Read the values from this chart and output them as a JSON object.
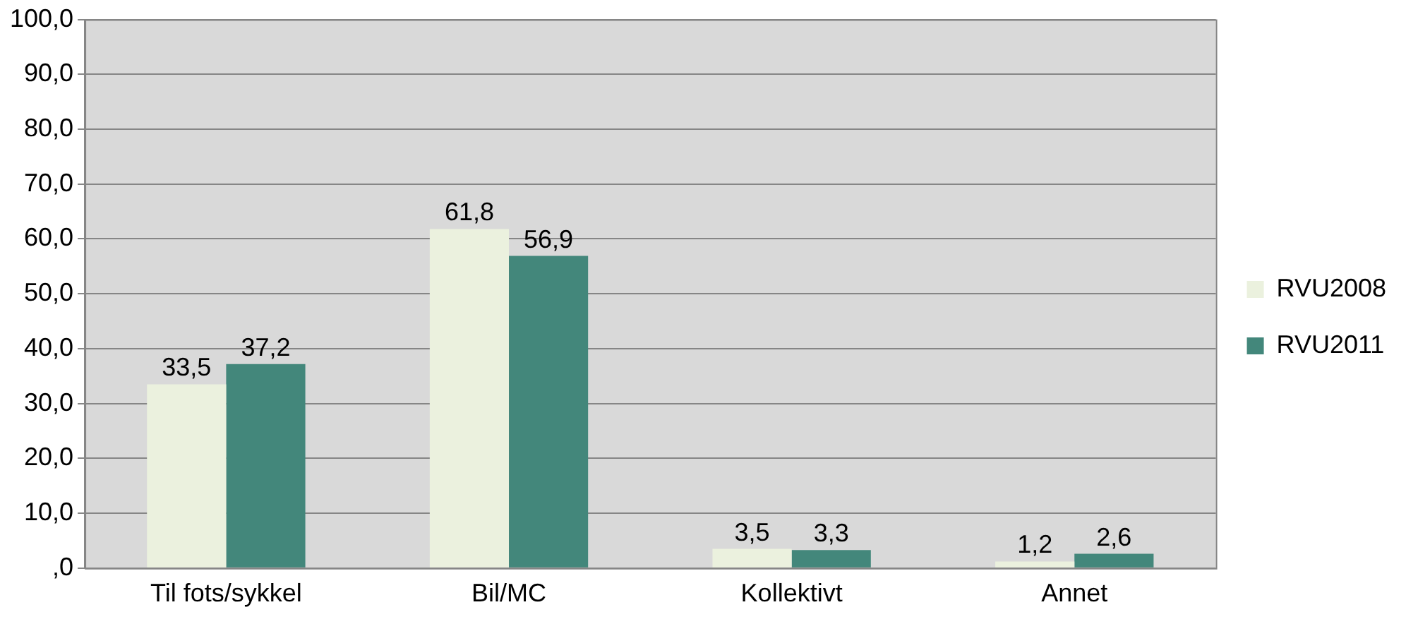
{
  "chart_data": {
    "type": "bar",
    "categories": [
      "Til fots/sykkel",
      "Bil/MC",
      "Kollektivt",
      "Annet"
    ],
    "series": [
      {
        "name": "RVU2008",
        "color": "#ebf1de",
        "values": [
          33.5,
          61.8,
          3.5,
          1.2
        ],
        "value_labels": [
          "33,5",
          "61,8",
          "3,5",
          "1,2"
        ]
      },
      {
        "name": "RVU2011",
        "color": "#43877b",
        "values": [
          37.2,
          56.9,
          3.3,
          2.6
        ],
        "value_labels": [
          "37,2",
          "56,9",
          "3,3",
          "2,6"
        ]
      }
    ],
    "ylim": [
      0,
      100
    ],
    "yticks": [
      {
        "value": 0,
        "label": ",0"
      },
      {
        "value": 10,
        "label": "10,0"
      },
      {
        "value": 20,
        "label": "20,0"
      },
      {
        "value": 30,
        "label": "30,0"
      },
      {
        "value": 40,
        "label": "40,0"
      },
      {
        "value": 50,
        "label": "50,0"
      },
      {
        "value": 60,
        "label": "60,0"
      },
      {
        "value": 70,
        "label": "70,0"
      },
      {
        "value": 80,
        "label": "80,0"
      },
      {
        "value": 90,
        "label": "90,0"
      },
      {
        "value": 100,
        "label": "100,0"
      }
    ],
    "grid": "y",
    "legend": "right"
  }
}
